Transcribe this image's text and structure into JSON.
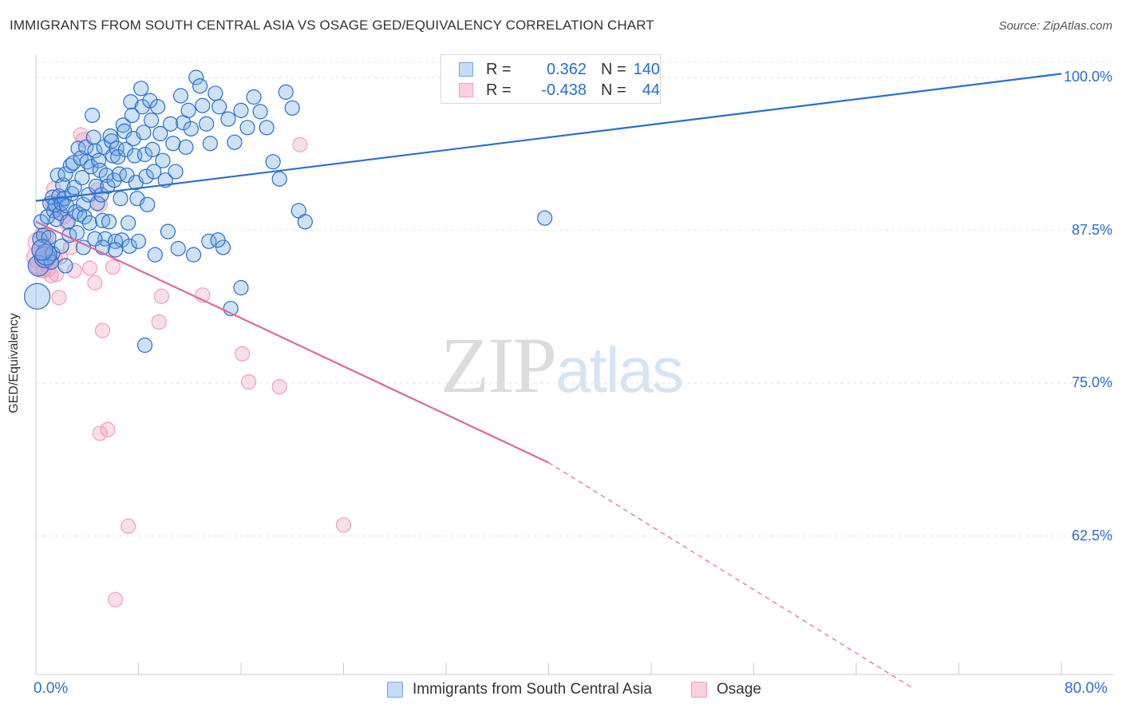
{
  "title": "IMMIGRANTS FROM SOUTH CENTRAL ASIA VS OSAGE GED/EQUIVALENCY CORRELATION CHART",
  "source": "Source: ZipAtlas.com",
  "watermark": {
    "zip": "ZIP",
    "atlas": "atlas"
  },
  "legend": {
    "r_label": "R =",
    "n_label": "N =",
    "rows": [
      {
        "r": "0.362",
        "n": "140",
        "color": "#6fa8e8"
      },
      {
        "r": "-0.438",
        "n": "44",
        "color": "#f0a0bc"
      }
    ]
  },
  "bottom_legend": [
    {
      "label": "Immigrants from South Central Asia",
      "color": "#6fa8e8"
    },
    {
      "label": "Osage",
      "color": "#f0a0bc"
    }
  ],
  "colors": {
    "blue": "#2a6dcf",
    "blue_fill": "#6fa8e8",
    "pink": "#e06896",
    "pink_fill": "#f0a0bc",
    "grid": "#e6e6e6"
  },
  "chart_data": {
    "type": "scatter",
    "title": "IMMIGRANTS FROM SOUTH CENTRAL ASIA VS OSAGE GED/EQUIVALENCY CORRELATION CHART",
    "xlabel": "",
    "ylabel": "GED/Equivalency",
    "x_tick_labels": [
      "0.0%",
      "80.0%"
    ],
    "y_tick_labels": [
      "100.0%",
      "87.5%",
      "75.0%",
      "62.5%"
    ],
    "y_ticks": [
      100.0,
      87.5,
      75.0,
      62.5
    ],
    "xlim": [
      0,
      80
    ],
    "ylim": [
      51.5,
      102
    ],
    "grid": true,
    "legend_position": "top-center",
    "series": [
      {
        "name": "Immigrants from South Central Asia",
        "R": 0.362,
        "N": 140,
        "trend": {
          "x": [
            0,
            80
          ],
          "y": [
            89.9,
            100.3
          ]
        },
        "points": [
          [
            0.2,
            84.6
          ],
          [
            0.3,
            86.8
          ],
          [
            0.4,
            88.2
          ],
          [
            0.6,
            87.1
          ],
          [
            0.7,
            85.3
          ],
          [
            0.9,
            88.6
          ],
          [
            1.0,
            86.9
          ],
          [
            1.1,
            89.7
          ],
          [
            1.2,
            84.9
          ],
          [
            1.3,
            90.2
          ],
          [
            1.4,
            89.1
          ],
          [
            1.5,
            89.6
          ],
          [
            1.6,
            88.4
          ],
          [
            1.7,
            92.0
          ],
          [
            1.8,
            90.3
          ],
          [
            1.9,
            88.9
          ],
          [
            2.0,
            89.7
          ],
          [
            2.1,
            91.2
          ],
          [
            2.2,
            90.1
          ],
          [
            2.3,
            92.1
          ],
          [
            2.4,
            89.5
          ],
          [
            2.5,
            88.2
          ],
          [
            2.6,
            87.1
          ],
          [
            2.7,
            92.8
          ],
          [
            2.8,
            90.5
          ],
          [
            2.9,
            93.0
          ],
          [
            3.0,
            91.0
          ],
          [
            3.1,
            89.0
          ],
          [
            3.2,
            87.3
          ],
          [
            3.3,
            94.2
          ],
          [
            3.4,
            88.8
          ],
          [
            3.5,
            93.4
          ],
          [
            3.6,
            91.8
          ],
          [
            3.7,
            89.6
          ],
          [
            3.8,
            88.6
          ],
          [
            3.9,
            94.3
          ],
          [
            4.0,
            93.1
          ],
          [
            4.1,
            90.4
          ],
          [
            4.2,
            88.1
          ],
          [
            4.3,
            92.7
          ],
          [
            4.4,
            96.9
          ],
          [
            4.5,
            95.1
          ],
          [
            4.6,
            94.0
          ],
          [
            4.7,
            91.1
          ],
          [
            4.8,
            89.7
          ],
          [
            4.9,
            93.2
          ],
          [
            5.0,
            92.4
          ],
          [
            5.1,
            90.4
          ],
          [
            5.2,
            88.3
          ],
          [
            5.3,
            94.3
          ],
          [
            5.4,
            86.8
          ],
          [
            5.5,
            92.0
          ],
          [
            5.6,
            91.1
          ],
          [
            5.7,
            88.2
          ],
          [
            5.8,
            95.2
          ],
          [
            5.9,
            94.8
          ],
          [
            6.0,
            93.6
          ],
          [
            6.1,
            91.6
          ],
          [
            6.2,
            86.6
          ],
          [
            6.3,
            94.2
          ],
          [
            6.4,
            93.5
          ],
          [
            6.5,
            92.1
          ],
          [
            6.6,
            90.1
          ],
          [
            6.7,
            86.7
          ],
          [
            6.8,
            96.1
          ],
          [
            6.9,
            95.6
          ],
          [
            7.0,
            94.1
          ],
          [
            7.1,
            92.0
          ],
          [
            7.2,
            88.1
          ],
          [
            7.3,
            86.2
          ],
          [
            7.4,
            98.0
          ],
          [
            7.5,
            96.9
          ],
          [
            7.6,
            95.0
          ],
          [
            7.7,
            93.6
          ],
          [
            7.8,
            91.4
          ],
          [
            7.9,
            90.1
          ],
          [
            8.0,
            86.6
          ],
          [
            8.2,
            99.1
          ],
          [
            8.3,
            97.6
          ],
          [
            8.4,
            95.5
          ],
          [
            8.5,
            93.7
          ],
          [
            8.6,
            91.9
          ],
          [
            8.7,
            89.6
          ],
          [
            8.9,
            98.1
          ],
          [
            9.0,
            96.5
          ],
          [
            9.1,
            94.1
          ],
          [
            9.2,
            92.3
          ],
          [
            9.3,
            85.5
          ],
          [
            9.5,
            97.6
          ],
          [
            9.7,
            95.4
          ],
          [
            9.9,
            93.2
          ],
          [
            10.1,
            91.6
          ],
          [
            10.3,
            87.4
          ],
          [
            10.5,
            96.2
          ],
          [
            10.7,
            94.6
          ],
          [
            10.9,
            92.3
          ],
          [
            11.1,
            86.0
          ],
          [
            11.3,
            98.5
          ],
          [
            11.5,
            96.3
          ],
          [
            11.7,
            94.3
          ],
          [
            11.9,
            97.3
          ],
          [
            12.1,
            95.8
          ],
          [
            12.3,
            85.5
          ],
          [
            12.5,
            100.0
          ],
          [
            12.8,
            99.3
          ],
          [
            13.0,
            97.7
          ],
          [
            13.3,
            96.2
          ],
          [
            13.6,
            94.6
          ],
          [
            14.0,
            98.7
          ],
          [
            14.3,
            97.6
          ],
          [
            14.6,
            86.1
          ],
          [
            15.0,
            96.6
          ],
          [
            15.5,
            94.7
          ],
          [
            16.0,
            97.3
          ],
          [
            16.5,
            95.9
          ],
          [
            17.0,
            98.4
          ],
          [
            17.5,
            97.2
          ],
          [
            18.0,
            95.9
          ],
          [
            18.5,
            93.1
          ],
          [
            19.0,
            91.7
          ],
          [
            19.5,
            98.8
          ],
          [
            20.0,
            97.5
          ],
          [
            3.7,
            86.1
          ],
          [
            4.6,
            86.8
          ],
          [
            5.2,
            86.1
          ],
          [
            6.2,
            85.9
          ],
          [
            8.5,
            78.1
          ],
          [
            15.2,
            81.1
          ],
          [
            13.5,
            86.6
          ],
          [
            14.2,
            86.7
          ],
          [
            16.0,
            82.8
          ],
          [
            20.5,
            89.1
          ],
          [
            21.0,
            88.2
          ],
          [
            39.7,
            88.5
          ],
          [
            1.3,
            85.6
          ],
          [
            0.8,
            85.5
          ],
          [
            0.5,
            85.9
          ],
          [
            0.1,
            82.1
          ],
          [
            2.0,
            86.2
          ],
          [
            2.3,
            84.6
          ]
        ]
      },
      {
        "name": "Osage",
        "R": -0.438,
        "N": 44,
        "trend": {
          "x": [
            0,
            40
          ],
          "y": [
            88.2,
            68.5
          ]
        },
        "trend_dashed_end": {
          "x": [
            40,
            68.5
          ],
          "y": [
            68.5,
            50.0
          ]
        },
        "points": [
          [
            0.1,
            85.3
          ],
          [
            0.2,
            86.5
          ],
          [
            0.3,
            84.7
          ],
          [
            0.4,
            87.1
          ],
          [
            0.5,
            85.8
          ],
          [
            0.6,
            84.2
          ],
          [
            0.7,
            86.0
          ],
          [
            0.8,
            87.0
          ],
          [
            0.9,
            85.1
          ],
          [
            1.0,
            84.3
          ],
          [
            1.2,
            83.8
          ],
          [
            1.3,
            89.7
          ],
          [
            1.4,
            90.9
          ],
          [
            1.5,
            85.2
          ],
          [
            1.6,
            83.9
          ],
          [
            1.7,
            89.2
          ],
          [
            1.8,
            82.0
          ],
          [
            1.9,
            85.3
          ],
          [
            2.0,
            89.9
          ],
          [
            2.2,
            88.6
          ],
          [
            2.4,
            88.1
          ],
          [
            2.7,
            86.1
          ],
          [
            3.0,
            84.2
          ],
          [
            3.5,
            95.3
          ],
          [
            3.7,
            94.9
          ],
          [
            4.8,
            90.8
          ],
          [
            5.0,
            89.6
          ],
          [
            4.2,
            84.4
          ],
          [
            4.6,
            83.2
          ],
          [
            6.0,
            84.5
          ],
          [
            5.2,
            79.3
          ],
          [
            5.0,
            70.9
          ],
          [
            5.6,
            71.2
          ],
          [
            7.2,
            63.3
          ],
          [
            6.2,
            57.3
          ],
          [
            9.8,
            82.1
          ],
          [
            9.6,
            80.0
          ],
          [
            13.0,
            82.2
          ],
          [
            16.1,
            77.4
          ],
          [
            16.6,
            75.1
          ],
          [
            19.0,
            74.7
          ],
          [
            20.6,
            94.5
          ],
          [
            24.0,
            63.4
          ],
          [
            0.4,
            84.5
          ]
        ]
      }
    ]
  }
}
